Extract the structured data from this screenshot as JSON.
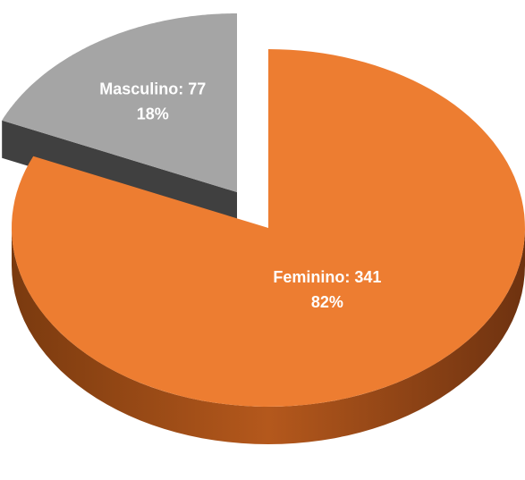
{
  "chart_data": {
    "type": "pie3d",
    "categories": [
      "Feminino",
      "Masculino"
    ],
    "values": [
      341,
      77
    ],
    "value_labels": [
      "Feminino: 341",
      "Masculino: 77"
    ],
    "percents": [
      82,
      18
    ],
    "percent_labels": [
      "82%",
      "18%"
    ],
    "colors": [
      "#ed7d31",
      "#a5a5a5"
    ],
    "explode": [
      false,
      true
    ]
  }
}
